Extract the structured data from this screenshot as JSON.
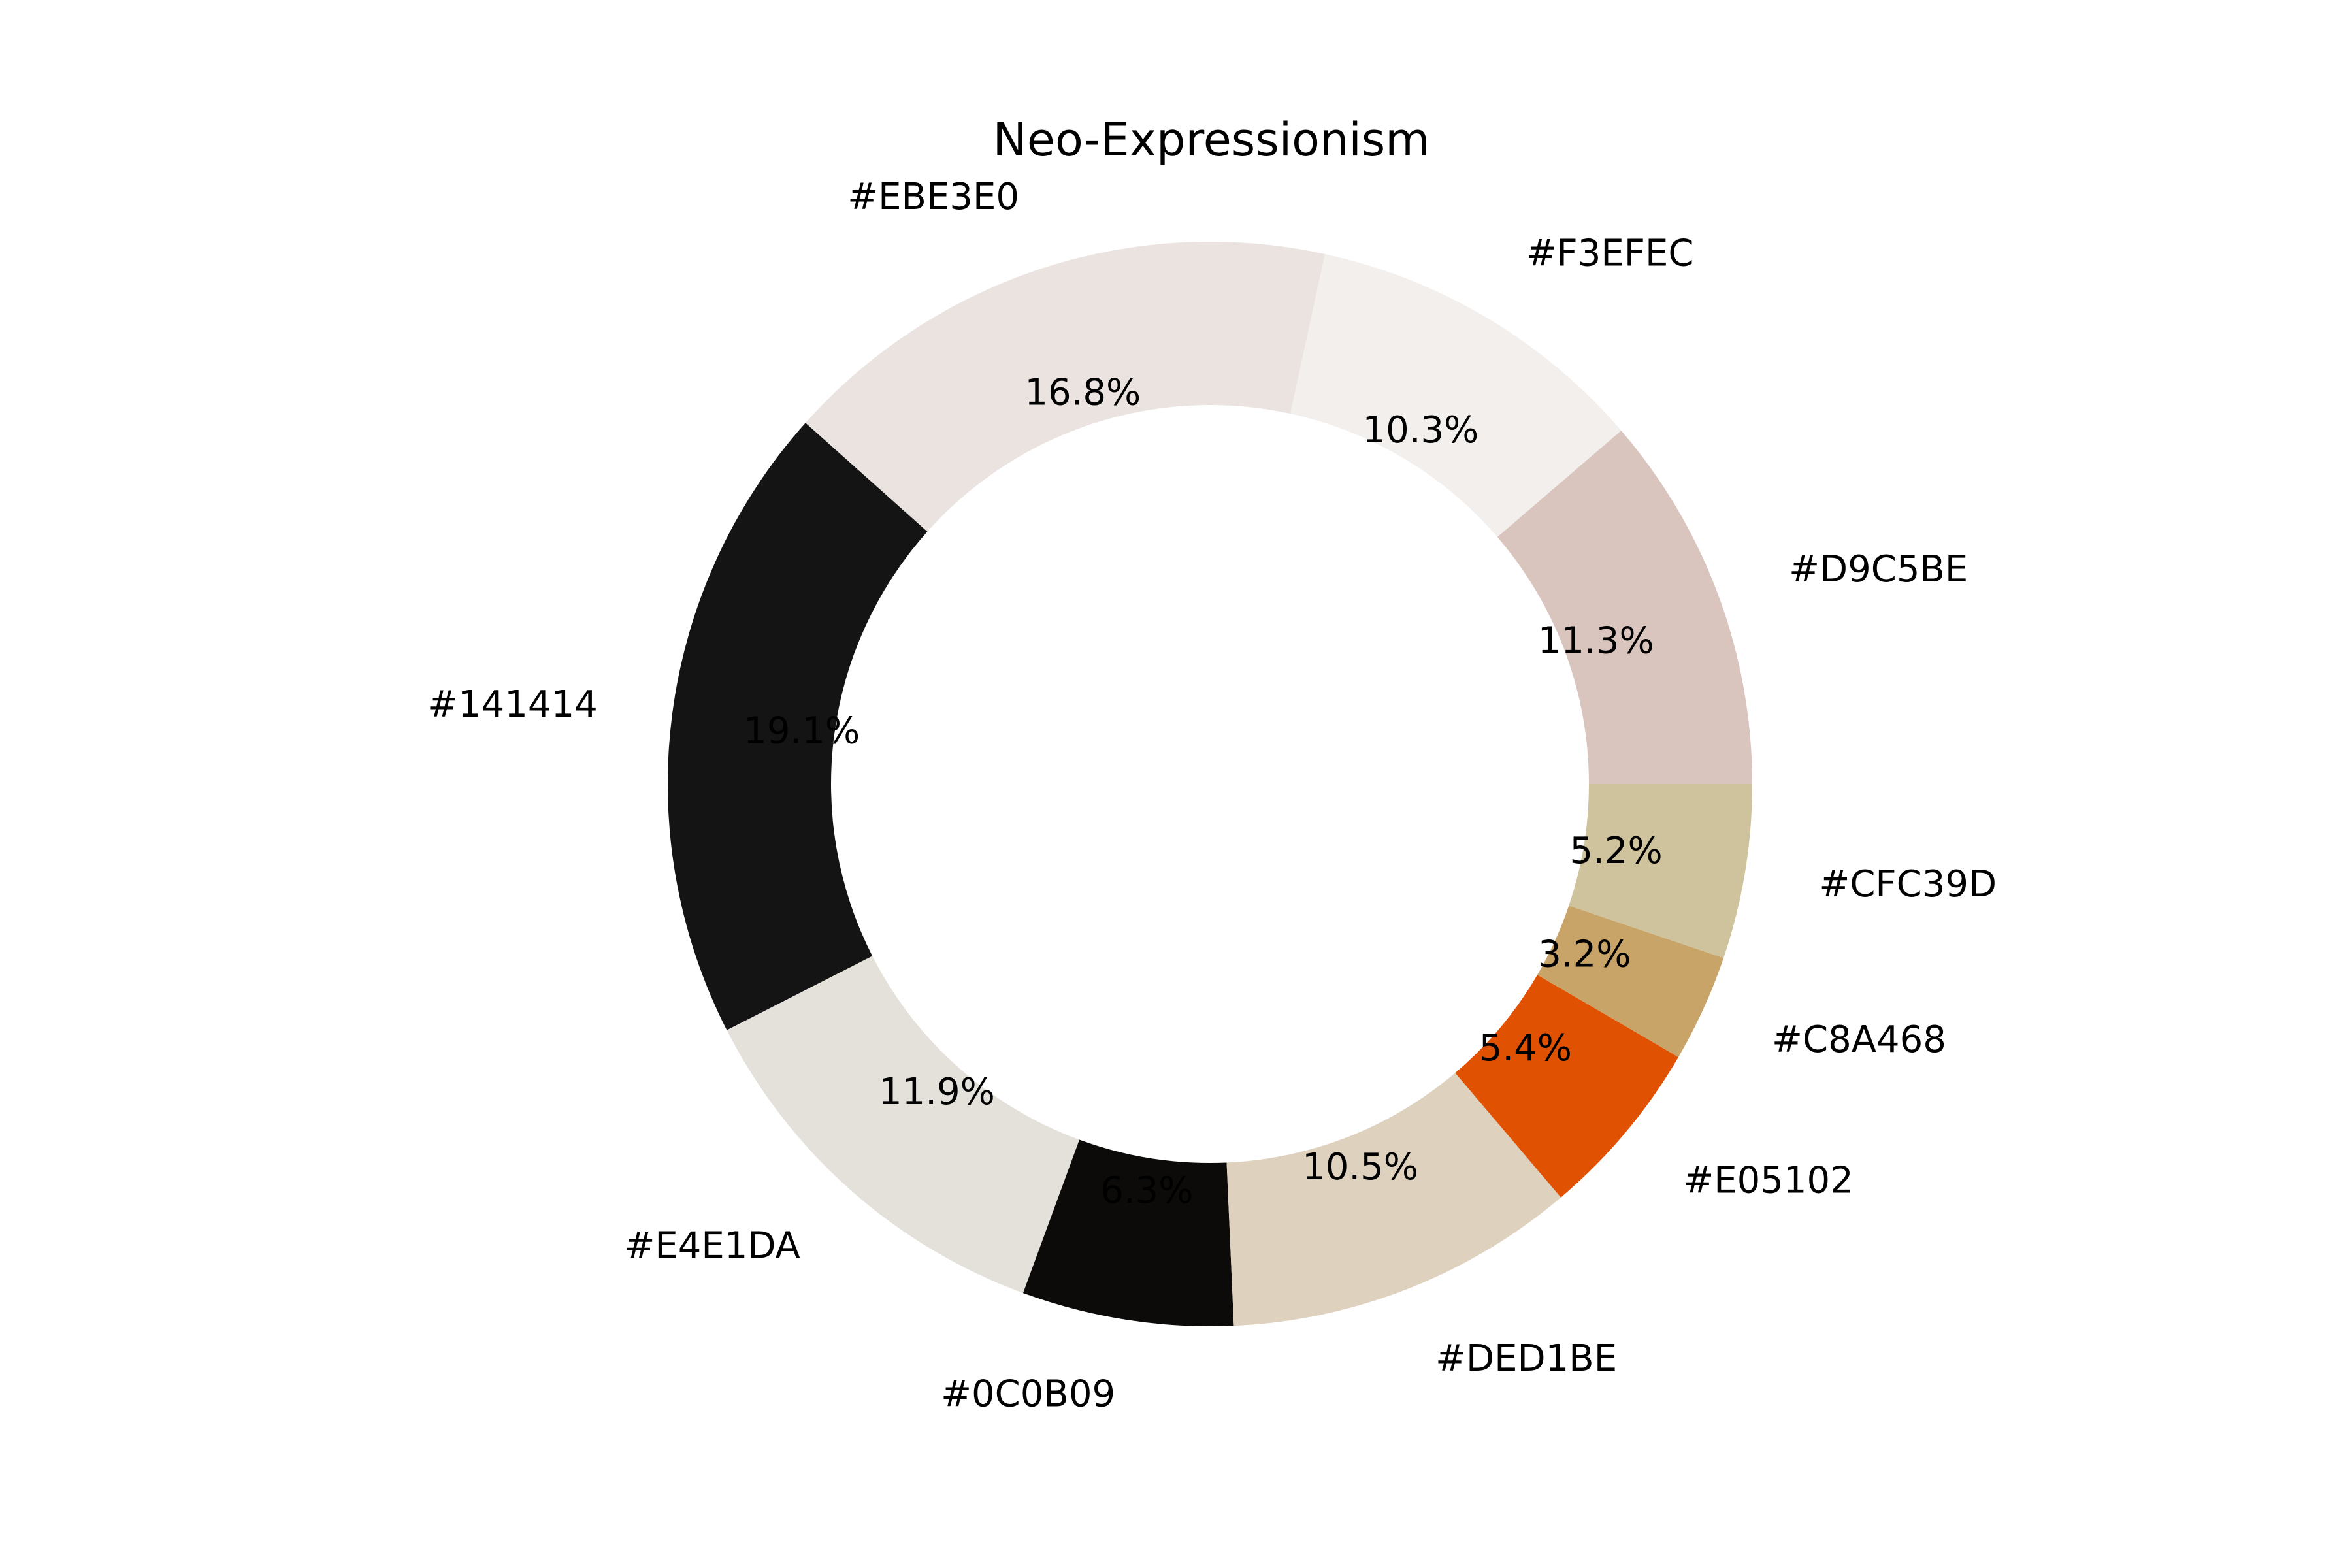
{
  "chart_data": {
    "type": "pie",
    "donut": true,
    "title": "Neo-Expressionism",
    "start_angle_deg": 0,
    "direction": "counterclockwise",
    "slices": [
      {
        "label": "#D9C5BE",
        "color": "#D9C5BE",
        "value": 11.3,
        "pct_label": "11.3%"
      },
      {
        "label": "#F3EFEC",
        "color": "#F3EFEC",
        "value": 10.3,
        "pct_label": "10.3%"
      },
      {
        "label": "#EBE3E0",
        "color": "#EBE3E0",
        "value": 16.8,
        "pct_label": "16.8%"
      },
      {
        "label": "#141414",
        "color": "#141414",
        "value": 19.1,
        "pct_label": "19.1%"
      },
      {
        "label": "#E4E1DA",
        "color": "#E4E1DA",
        "value": 11.9,
        "pct_label": "11.9%"
      },
      {
        "label": "#0C0B09",
        "color": "#0C0B09",
        "value": 6.3,
        "pct_label": "6.3%"
      },
      {
        "label": "#DED1BE",
        "color": "#DED1BE",
        "value": 10.5,
        "pct_label": "10.5%"
      },
      {
        "label": "#E05102",
        "color": "#E05102",
        "value": 5.4,
        "pct_label": "5.4%"
      },
      {
        "label": "#C8A468",
        "color": "#C8A468",
        "value": 3.2,
        "pct_label": "3.2%"
      },
      {
        "label": "#CFC39D",
        "color": "#CFC39D",
        "value": 5.2,
        "pct_label": "5.2%"
      }
    ]
  }
}
